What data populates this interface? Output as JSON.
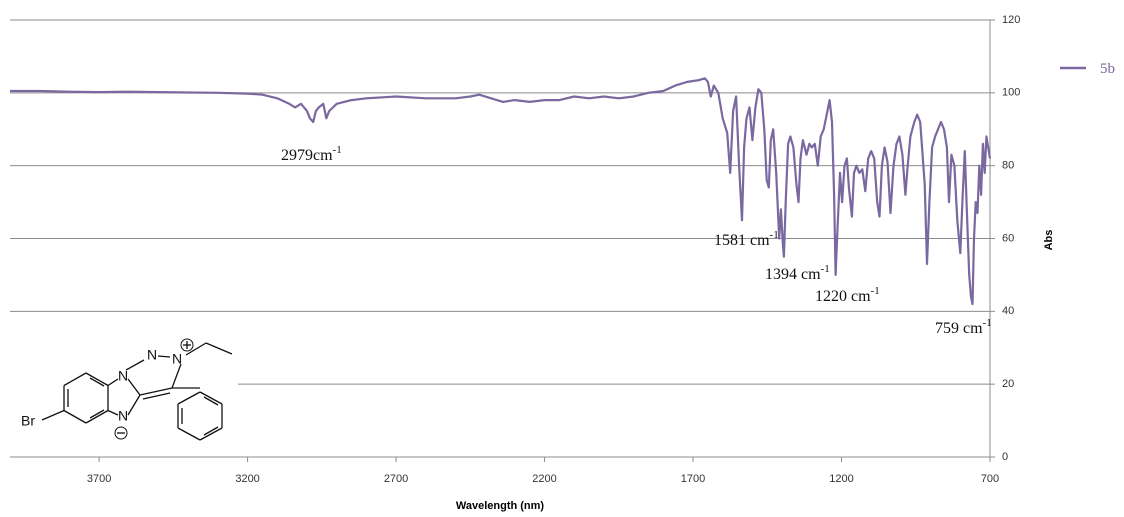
{
  "chart_data": {
    "type": "line",
    "xlabel": "Wavelength (nm)",
    "ylabel": "Abs",
    "x": [
      4000,
      3900,
      3800,
      3700,
      3600,
      3500,
      3400,
      3300,
      3200,
      3150,
      3100,
      3060,
      3040,
      3020,
      3000,
      2990,
      2979,
      2970,
      2960,
      2945,
      2935,
      2925,
      2900,
      2850,
      2800,
      2700,
      2600,
      2500,
      2450,
      2420,
      2380,
      2340,
      2300,
      2250,
      2200,
      2150,
      2100,
      2050,
      2000,
      1950,
      1900,
      1850,
      1800,
      1760,
      1720,
      1680,
      1660,
      1650,
      1640,
      1630,
      1615,
      1600,
      1585,
      1575,
      1565,
      1555,
      1545,
      1535,
      1528,
      1520,
      1510,
      1500,
      1490,
      1480,
      1470,
      1460,
      1452,
      1445,
      1438,
      1430,
      1420,
      1410,
      1404,
      1397,
      1394,
      1388,
      1380,
      1372,
      1362,
      1352,
      1345,
      1338,
      1330,
      1318,
      1308,
      1300,
      1290,
      1280,
      1270,
      1260,
      1250,
      1240,
      1232,
      1225,
      1220,
      1214,
      1205,
      1198,
      1190,
      1182,
      1175,
      1165,
      1158,
      1150,
      1140,
      1130,
      1120,
      1110,
      1100,
      1090,
      1080,
      1072,
      1064,
      1055,
      1045,
      1035,
      1025,
      1015,
      1005,
      995,
      985,
      977,
      968,
      955,
      945,
      935,
      920,
      912,
      904,
      895,
      885,
      875,
      865,
      855,
      845,
      838,
      830,
      820,
      810,
      800,
      792,
      785,
      778,
      770,
      764,
      759,
      754,
      748,
      742,
      736,
      730,
      724,
      718,
      712,
      706,
      700
    ],
    "series": [
      {
        "name": "5b",
        "color": "#7a68a0",
        "values": [
          100.5,
          100.5,
          100.3,
          100.2,
          100.3,
          100.2,
          100.1,
          100,
          99.8,
          99.5,
          98.5,
          97,
          96,
          97,
          95,
          93,
          92,
          95,
          96,
          97,
          93,
          95,
          97,
          98,
          98.5,
          99,
          98.5,
          98.5,
          99,
          99.5,
          98.5,
          97.5,
          98,
          97.5,
          98,
          98,
          99,
          98.5,
          99,
          98.5,
          99,
          100,
          100.5,
          102,
          103,
          103.5,
          104,
          103,
          99,
          102,
          100,
          93,
          89,
          78,
          95,
          99,
          80,
          65,
          85,
          93,
          96,
          87,
          96,
          101,
          100,
          90,
          76,
          74,
          87,
          90,
          78,
          60,
          68,
          58,
          55,
          70,
          86,
          88,
          85,
          75,
          70,
          82,
          87,
          83,
          86,
          85,
          86,
          80,
          88,
          90,
          94,
          98,
          92,
          72,
          50,
          62,
          78,
          70,
          80,
          82,
          74,
          66,
          78,
          80,
          78,
          79,
          73,
          82,
          84,
          82,
          70,
          66,
          80,
          85,
          81,
          67,
          80,
          86,
          88,
          83,
          72,
          80,
          88,
          92,
          94,
          92,
          75,
          53,
          70,
          85,
          88,
          90,
          92,
          90,
          85,
          70,
          83,
          80,
          65,
          56,
          72,
          84,
          68,
          50,
          44,
          42,
          60,
          70,
          67,
          80,
          72,
          86,
          78,
          88,
          85,
          82
        ]
      }
    ],
    "xlim": [
      4000,
      700
    ],
    "xticks": [
      3700,
      3200,
      2700,
      2200,
      1700,
      1200,
      700
    ],
    "ylim": [
      0,
      120
    ],
    "yticks": [
      0,
      20,
      40,
      60,
      80,
      100,
      120
    ],
    "grid": true,
    "legend": "right",
    "annotations": [
      {
        "text": "2979cm",
        "superscript": "-1"
      },
      {
        "text": "1581 cm",
        "superscript": "-1"
      },
      {
        "text": "1394 cm",
        "superscript": "-1"
      },
      {
        "text": "1220 cm",
        "superscript": "-1"
      },
      {
        "text": "759 cm",
        "superscript": "-1"
      }
    ]
  },
  "structure": {
    "labels": [
      "N",
      "N",
      "N",
      "N",
      "Br"
    ]
  }
}
